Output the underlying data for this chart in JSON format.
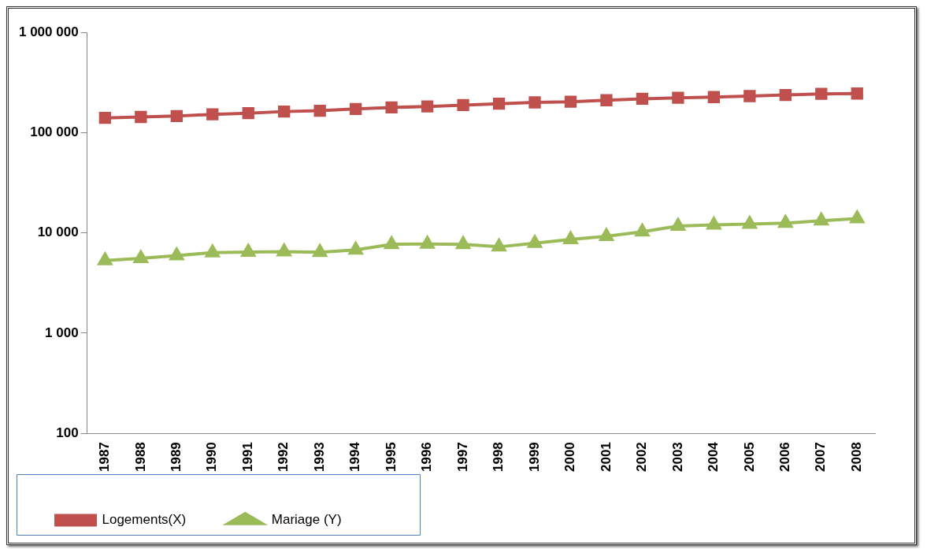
{
  "chart_data": {
    "type": "line",
    "log": "y",
    "grid": false,
    "legend": "bottom left",
    "line_style": "solid",
    "categories": [
      "1987",
      "1988",
      "1989",
      "1990",
      "1991",
      "1992",
      "1993",
      "1994",
      "1995",
      "1996",
      "1997",
      "1998",
      "1999",
      "2000",
      "2001",
      "2002",
      "2003",
      "2004",
      "2005",
      "2006",
      "2007",
      "2008"
    ],
    "ylim": [
      100,
      1000000
    ],
    "yticks": [
      {
        "value": 100,
        "label": "100"
      },
      {
        "value": 1000,
        "label": "1 000"
      },
      {
        "value": 10000,
        "label": "10 000"
      },
      {
        "value": 100000,
        "label": "100 000"
      },
      {
        "value": 1000000,
        "label": "1 000 000"
      }
    ],
    "series": [
      {
        "name": "Logements(X)",
        "color": "#c0504d",
        "marker": "square",
        "values": [
          140000,
          143000,
          146000,
          152000,
          156000,
          162000,
          165000,
          172000,
          178000,
          182000,
          188000,
          194000,
          200000,
          203000,
          210000,
          217000,
          222000,
          226000,
          231000,
          237000,
          243000,
          245000
        ]
      },
      {
        "name": "Mariage (Y)",
        "color": "#9bbb59",
        "marker": "triangle",
        "values": [
          5300,
          5570,
          5940,
          6340,
          6430,
          6500,
          6400,
          6750,
          7680,
          7740,
          7680,
          7250,
          7870,
          8580,
          9220,
          10240,
          11700,
          12000,
          12200,
          12500,
          13200,
          13900
        ]
      }
    ]
  }
}
